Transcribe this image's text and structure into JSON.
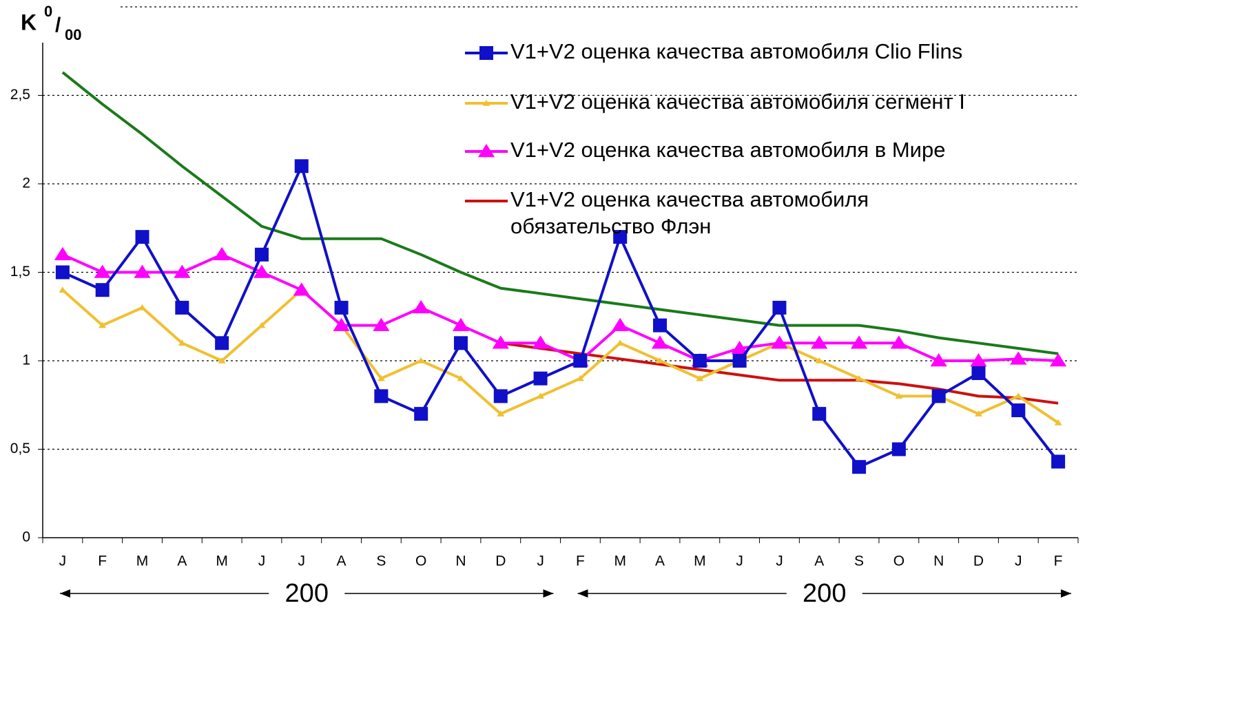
{
  "chart_data": {
    "type": "line",
    "ylabel": {
      "main": "K",
      "sup": "0",
      "sep": "/",
      "sub": "00"
    },
    "categories": [
      "J",
      "F",
      "M",
      "A",
      "M",
      "J",
      "J",
      "A",
      "S",
      "O",
      "N",
      "D",
      "J",
      "F",
      "M",
      "A",
      "M",
      "J",
      "J",
      "A",
      "S",
      "O",
      "N",
      "D",
      "J",
      "F"
    ],
    "ylim": [
      0,
      3
    ],
    "yticks": [
      0,
      {
        "value": 0.5,
        "label": "0,5"
      },
      1,
      {
        "value": 1.5,
        "label": "1,5"
      },
      2,
      {
        "value": 2.5,
        "label": "2,5"
      }
    ],
    "grid": true,
    "legend": "top-right",
    "period_labels": [
      "200",
      "200"
    ],
    "series": [
      {
        "name": "V1+V2 оценка качества автомобиля  Clio Flins",
        "color": "#1010c8",
        "marker": "square",
        "values": [
          1.5,
          1.4,
          1.7,
          1.3,
          1.1,
          1.6,
          2.1,
          1.3,
          0.8,
          0.7,
          1.1,
          0.8,
          0.9,
          1.0,
          1.7,
          1.2,
          1.0,
          1.0,
          1.3,
          0.7,
          0.4,
          0.5,
          0.8,
          0.93,
          0.72,
          0.43
        ]
      },
      {
        "name": "V1+V2 оценка качества автомобиля  сегмент I",
        "color": "#f0c030",
        "marker": "small-triangle",
        "values": [
          1.4,
          1.2,
          1.3,
          1.1,
          1.0,
          1.2,
          1.4,
          1.2,
          0.9,
          1.0,
          0.9,
          0.7,
          0.8,
          0.9,
          1.1,
          1.0,
          0.9,
          1.0,
          1.1,
          1.0,
          0.9,
          0.8,
          0.8,
          0.7,
          0.8,
          0.65
        ]
      },
      {
        "name": "V1+V2 оценка качества автомобиля в Мире",
        "color": "#ff00ff",
        "marker": "triangle",
        "values": [
          1.6,
          1.5,
          1.5,
          1.5,
          1.6,
          1.5,
          1.4,
          1.2,
          1.2,
          1.3,
          1.2,
          1.1,
          1.1,
          1.0,
          1.2,
          1.1,
          1.0,
          1.07,
          1.1,
          1.1,
          1.1,
          1.1,
          1.0,
          1.0,
          1.01,
          1.0
        ]
      },
      {
        "name": "V1+V2 оценка качества автомобиля\nобязательство Флэн",
        "color": "#cc1010",
        "marker": "none",
        "values": [
          null,
          null,
          null,
          null,
          null,
          null,
          null,
          null,
          null,
          null,
          null,
          1.1,
          1.07,
          1.04,
          1.01,
          0.98,
          0.95,
          0.92,
          0.89,
          0.89,
          0.89,
          0.87,
          0.84,
          0.8,
          0.79,
          0.76
        ]
      },
      {
        "color": "#1a7a1a",
        "marker": "none",
        "values": [
          2.63,
          2.45,
          2.28,
          2.1,
          1.93,
          1.76,
          1.69,
          1.69,
          1.69,
          1.6,
          1.5,
          1.41,
          1.38,
          1.35,
          1.32,
          1.29,
          1.26,
          1.23,
          1.2,
          1.2,
          1.2,
          1.17,
          1.13,
          1.1,
          1.07,
          1.04
        ]
      }
    ]
  }
}
